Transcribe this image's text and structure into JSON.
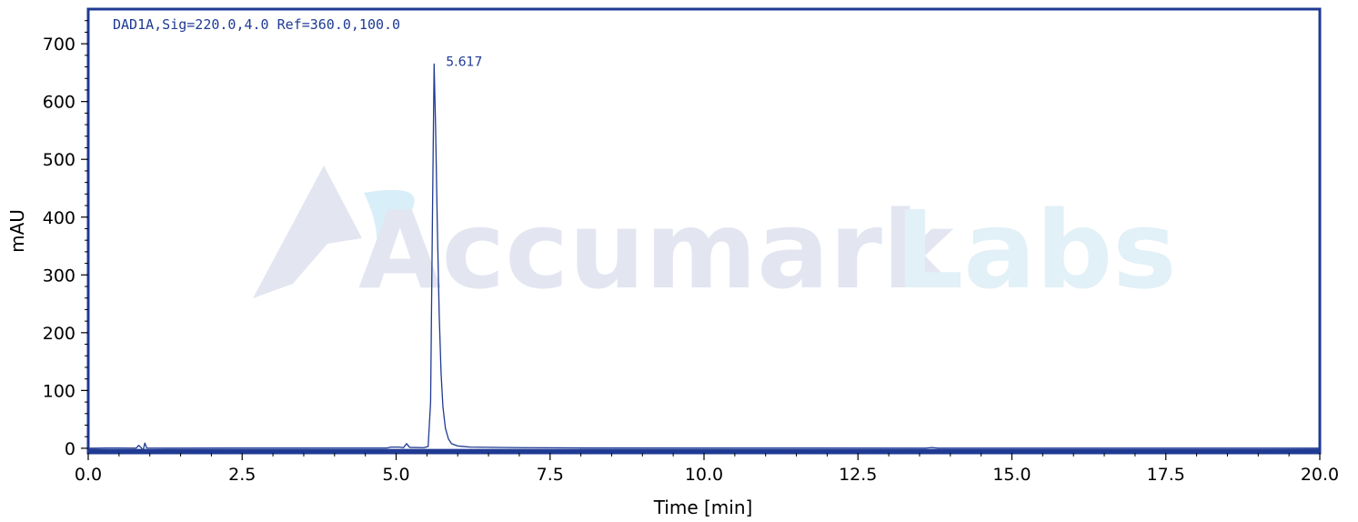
{
  "chart_data": {
    "type": "line",
    "title": "",
    "signal_label": "DAD1A,Sig=220.0,4.0 Ref=360.0,100.0",
    "xlabel": "Time [min]",
    "ylabel": "mAU",
    "xlim": [
      0,
      20
    ],
    "ylim": [
      -8,
      760
    ],
    "x_ticks": [
      0.0,
      2.5,
      5.0,
      7.5,
      10.0,
      12.5,
      15.0,
      17.5,
      20.0
    ],
    "x_tick_labels": [
      "0.0",
      "2.5",
      "5.0",
      "7.5",
      "10.0",
      "12.5",
      "15.0",
      "17.5",
      "20.0"
    ],
    "y_ticks": [
      0,
      100,
      200,
      300,
      400,
      500,
      600,
      700
    ],
    "y_tick_labels": [
      "0",
      "100",
      "200",
      "300",
      "400",
      "500",
      "600",
      "700"
    ],
    "grid": false,
    "peaks": [
      {
        "time": 5.617,
        "height": 665,
        "label": "5.617"
      }
    ],
    "series": [
      {
        "points": [
          [
            0.0,
            0.0
          ],
          [
            0.3,
            0.5
          ],
          [
            0.78,
            0.3
          ],
          [
            0.82,
            5.0
          ],
          [
            0.86,
            1.0
          ],
          [
            0.89,
            -4.0
          ],
          [
            0.92,
            9.0
          ],
          [
            0.95,
            0.5
          ],
          [
            1.3,
            0.3
          ],
          [
            2.7,
            0.5
          ],
          [
            4.85,
            0.5
          ],
          [
            4.92,
            2.0
          ],
          [
            5.05,
            2.0
          ],
          [
            5.12,
            1.0
          ],
          [
            5.17,
            8.0
          ],
          [
            5.22,
            1.5
          ],
          [
            5.45,
            1.0
          ],
          [
            5.52,
            3.0
          ],
          [
            5.56,
            80.0
          ],
          [
            5.59,
            400.0
          ],
          [
            5.617,
            665.0
          ],
          [
            5.64,
            560.0
          ],
          [
            5.67,
            380.0
          ],
          [
            5.7,
            230.0
          ],
          [
            5.73,
            130.0
          ],
          [
            5.76,
            72.0
          ],
          [
            5.8,
            35.0
          ],
          [
            5.85,
            16.0
          ],
          [
            5.9,
            8.0
          ],
          [
            6.0,
            4.0
          ],
          [
            6.2,
            2.0
          ],
          [
            7.0,
            1.0
          ],
          [
            8.0,
            0.6
          ],
          [
            10.0,
            0.5
          ],
          [
            13.6,
            0.3
          ],
          [
            13.7,
            1.2
          ],
          [
            13.8,
            0.3
          ],
          [
            16.0,
            0.3
          ],
          [
            20.0,
            0.2
          ]
        ]
      }
    ],
    "line_color": "#1f3a93",
    "frame_color": "#1f3a93",
    "baseline_color": "#1f3a93"
  },
  "watermark": {
    "brand": "Accumark",
    "suffix": "Labs",
    "brand_color": "#e3e6f1",
    "suffix_color": "#e2f0f7"
  }
}
